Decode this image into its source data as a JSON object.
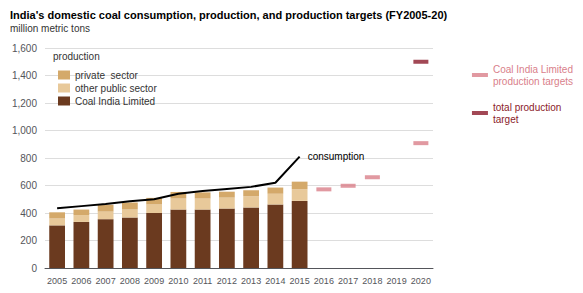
{
  "chart_data": {
    "type": "bar",
    "title": "India's domestic coal consumption, production, and production targets (FY2005-20)",
    "subtitle": "million metric tons",
    "legend_title": "production",
    "legend": "upper left",
    "stacked": true,
    "grid": true,
    "categories": [
      "2005",
      "2006",
      "2007",
      "2008",
      "2009",
      "2010",
      "2011",
      "2012",
      "2013",
      "2014",
      "2015",
      "2016",
      "2017",
      "2018",
      "2019",
      "2020"
    ],
    "series": [
      {
        "name": "Coal India Limited",
        "color": "#6b3a1f",
        "values": [
          310,
          335,
          355,
          368,
          400,
          425,
          425,
          432,
          440,
          462,
          488,
          null,
          null,
          null,
          null,
          null
        ]
      },
      {
        "name": "other public sector",
        "color": "#e8c99a",
        "values": [
          50,
          50,
          55,
          58,
          62,
          80,
          80,
          80,
          82,
          78,
          85,
          null,
          null,
          null,
          null,
          null
        ]
      },
      {
        "name": "private  sector",
        "color": "#d4a96a",
        "values": [
          45,
          40,
          50,
          50,
          48,
          48,
          45,
          43,
          43,
          45,
          55,
          null,
          null,
          null,
          null,
          null
        ]
      },
      {
        "name": "consumption",
        "type": "line",
        "color": "#000000",
        "values": [
          435,
          450,
          465,
          485,
          500,
          540,
          560,
          575,
          590,
          620,
          810,
          null,
          null,
          null,
          null,
          null
        ]
      },
      {
        "name": "Coal India Limited production targets",
        "type": "scatter",
        "marker": "dash",
        "color": "#d9808a",
        "values": [
          null,
          null,
          null,
          null,
          null,
          null,
          null,
          null,
          null,
          null,
          null,
          572,
          598,
          660,
          null,
          908
        ]
      },
      {
        "name": "total production target",
        "type": "scatter",
        "marker": "dash",
        "color": "#8b1a2a",
        "values": [
          null,
          null,
          null,
          null,
          null,
          null,
          null,
          null,
          null,
          null,
          null,
          null,
          null,
          null,
          null,
          1500
        ]
      }
    ],
    "ylim": [
      0,
      1600
    ],
    "yticks": [
      0,
      200,
      400,
      600,
      800,
      {
        "value": 1000,
        "label": "1,000"
      },
      {
        "value": 1200,
        "label": "1,200"
      },
      {
        "value": 1400,
        "label": "1,400"
      },
      {
        "value": 1600,
        "label": "1,600"
      }
    ]
  }
}
